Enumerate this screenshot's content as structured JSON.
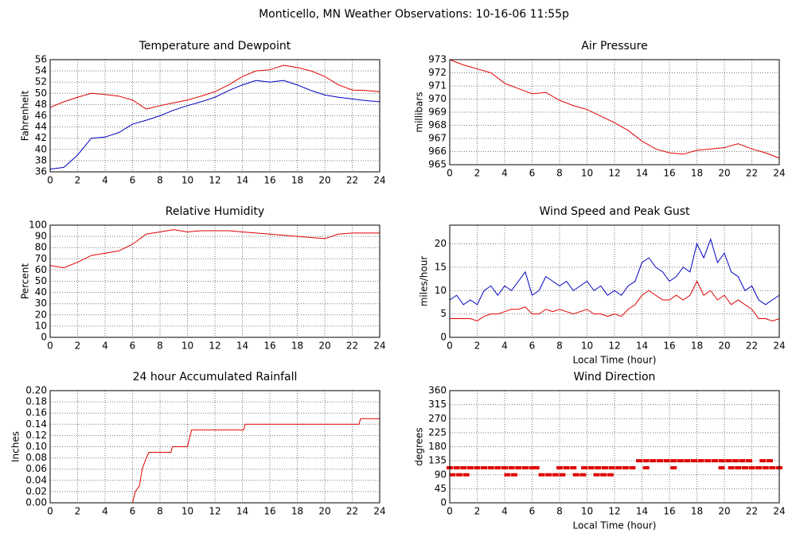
{
  "title": "Monticello, MN Weather Observations: 10-16-06 11:55p",
  "chart_data": [
    {
      "type": "line",
      "title": "Temperature and Dewpoint",
      "ylabel": "Fahrenheit",
      "xlim": [
        0,
        24
      ],
      "xticks": [
        0,
        2,
        4,
        6,
        8,
        10,
        12,
        14,
        16,
        18,
        20,
        22,
        24
      ],
      "ylim": [
        36,
        56
      ],
      "yticks": [
        36,
        38,
        40,
        42,
        44,
        46,
        48,
        50,
        52,
        54,
        56
      ],
      "grid": true,
      "x": [
        0,
        1,
        2,
        3,
        4,
        5,
        6,
        7,
        8,
        9,
        10,
        11,
        12,
        13,
        14,
        15,
        16,
        17,
        18,
        19,
        20,
        21,
        22,
        23,
        24
      ],
      "series": [
        {
          "color": "#e00000",
          "values": [
            47.5,
            48.5,
            49.3,
            50,
            49.8,
            49.5,
            48.8,
            47.2,
            47.8,
            48.3,
            48.8,
            49.5,
            50.3,
            51.5,
            53,
            54,
            54.2,
            55,
            54.6,
            54,
            53,
            51.5,
            50.6,
            50.5,
            50.3
          ]
        },
        {
          "color": "#0000c0",
          "values": [
            36.5,
            36.8,
            39,
            42,
            42.2,
            43,
            44.5,
            45.2,
            46,
            47,
            47.8,
            48.5,
            49.3,
            50.5,
            51.5,
            52.3,
            52,
            52.3,
            51.5,
            50.5,
            49.7,
            49.3,
            49,
            48.7,
            48.5
          ]
        }
      ]
    },
    {
      "type": "line",
      "title": "Air Pressure",
      "ylabel": "millibars",
      "xlim": [
        0,
        24
      ],
      "xticks": [
        0,
        2,
        4,
        6,
        8,
        10,
        12,
        14,
        16,
        18,
        20,
        22,
        24
      ],
      "ylim": [
        965,
        973
      ],
      "yticks": [
        965,
        966,
        967,
        968,
        969,
        970,
        971,
        972,
        973
      ],
      "grid": true,
      "x": [
        0,
        1,
        2,
        3,
        4,
        5,
        6,
        7,
        8,
        9,
        10,
        11,
        12,
        13,
        14,
        15,
        16,
        17,
        18,
        19,
        20,
        21,
        22,
        23,
        24
      ],
      "series": [
        {
          "color": "#e00000",
          "values": [
            973,
            972.6,
            972.3,
            972,
            971.2,
            970.8,
            970.4,
            970.5,
            969.9,
            969.5,
            969.2,
            968.7,
            968.2,
            967.6,
            966.8,
            966.2,
            965.9,
            965.8,
            966.1,
            966.2,
            966.3,
            966.6,
            966.2,
            965.9,
            965.5
          ]
        }
      ]
    },
    {
      "type": "line",
      "title": "Relative Humidity",
      "ylabel": "Percent",
      "xlim": [
        0,
        24
      ],
      "xticks": [
        0,
        2,
        4,
        6,
        8,
        10,
        12,
        14,
        16,
        18,
        20,
        22,
        24
      ],
      "ylim": [
        0,
        100
      ],
      "yticks": [
        0,
        10,
        20,
        30,
        40,
        50,
        60,
        70,
        80,
        90,
        100
      ],
      "grid": true,
      "x": [
        0,
        1,
        2,
        3,
        4,
        5,
        6,
        7,
        8,
        9,
        10,
        11,
        12,
        13,
        14,
        15,
        16,
        17,
        18,
        19,
        20,
        21,
        22,
        23,
        24
      ],
      "series": [
        {
          "color": "#e00000",
          "values": [
            64,
            62,
            67,
            73,
            75,
            77,
            83,
            92,
            94,
            96,
            94,
            95,
            95,
            95,
            94,
            93,
            92,
            91,
            90,
            89,
            88,
            92,
            93,
            93,
            93
          ]
        }
      ]
    },
    {
      "type": "line",
      "title": "Wind Speed and Peak Gust",
      "ylabel": "miles/hour",
      "xlabel": "Local Time (hour)",
      "xlim": [
        0,
        24
      ],
      "xticks": [
        0,
        2,
        4,
        6,
        8,
        10,
        12,
        14,
        16,
        18,
        20,
        22,
        24
      ],
      "ylim": [
        0,
        24
      ],
      "yticks": [
        0,
        5,
        10,
        15,
        20
      ],
      "grid": true,
      "x": [
        0,
        0.5,
        1,
        1.5,
        2,
        2.5,
        3,
        3.5,
        4,
        4.5,
        5,
        5.5,
        6,
        6.5,
        7,
        7.5,
        8,
        8.5,
        9,
        9.5,
        10,
        10.5,
        11,
        11.5,
        12,
        12.5,
        13,
        13.5,
        14,
        14.5,
        15,
        15.5,
        16,
        16.5,
        17,
        17.5,
        18,
        18.5,
        19,
        19.5,
        20,
        20.5,
        21,
        21.5,
        22,
        22.5,
        23,
        23.5,
        24
      ],
      "series": [
        {
          "color": "#0000c0",
          "values": [
            8,
            9,
            7,
            8,
            7,
            10,
            11,
            9,
            11,
            10,
            12,
            14,
            9,
            10,
            13,
            12,
            11,
            12,
            10,
            11,
            12,
            10,
            11,
            9,
            10,
            9,
            11,
            12,
            16,
            17,
            15,
            14,
            12,
            13,
            15,
            14,
            20,
            17,
            21,
            16,
            18,
            14,
            13,
            10,
            11,
            8,
            7,
            8,
            9
          ]
        },
        {
          "color": "#e00000",
          "values": [
            4,
            4,
            4,
            4,
            3.5,
            4.5,
            5,
            5,
            5.5,
            6,
            6,
            6.5,
            5,
            5,
            6,
            5.5,
            6,
            5.5,
            5,
            5.5,
            6,
            5,
            5,
            4.5,
            5,
            4.5,
            6,
            7,
            9,
            10,
            9,
            8,
            8,
            9,
            8,
            9,
            12,
            9,
            10,
            8,
            9,
            7,
            8,
            7,
            6,
            4,
            4,
            3.5,
            4
          ]
        }
      ]
    },
    {
      "type": "line",
      "title": "24 hour Accumulated Rainfall",
      "ylabel": "Inches",
      "xlim": [
        0,
        24
      ],
      "xticks": [
        0,
        2,
        4,
        6,
        8,
        10,
        12,
        14,
        16,
        18,
        20,
        22,
        24
      ],
      "ylim": [
        0,
        0.2
      ],
      "yticks": [
        {
          "value": 0,
          "label": "0.00"
        },
        {
          "value": 0.02,
          "label": "0.02"
        },
        {
          "value": 0.04,
          "label": "0.04"
        },
        {
          "value": 0.06,
          "label": "0.06"
        },
        {
          "value": 0.08,
          "label": "0.08"
        },
        {
          "value": 0.1,
          "label": "0.10"
        },
        {
          "value": 0.12,
          "label": "0.12"
        },
        {
          "value": 0.14,
          "label": "0.14"
        },
        {
          "value": 0.16,
          "label": "0.16"
        },
        {
          "value": 0.18,
          "label": "0.18"
        },
        {
          "value": 0.2,
          "label": "0.20"
        }
      ],
      "grid": true,
      "x": [
        0,
        6,
        6.2,
        6.5,
        6.7,
        7,
        7.2,
        8.8,
        8.9,
        10,
        10.2,
        10.3,
        14.1,
        14.2,
        22.5,
        22.6,
        24
      ],
      "series": [
        {
          "color": "#e00000",
          "values": [
            0,
            0,
            0.02,
            0.03,
            0.06,
            0.08,
            0.09,
            0.09,
            0.1,
            0.1,
            0.12,
            0.13,
            0.13,
            0.14,
            0.14,
            0.15,
            0.15
          ]
        }
      ]
    },
    {
      "type": "scatter",
      "title": "Wind Direction",
      "ylabel": "degrees",
      "xlabel": "Local Time (hour)",
      "xlim": [
        0,
        24
      ],
      "xticks": [
        0,
        2,
        4,
        6,
        8,
        10,
        12,
        14,
        16,
        18,
        20,
        22,
        24
      ],
      "ylim": [
        0,
        360
      ],
      "yticks": [
        0,
        45,
        90,
        135,
        180,
        225,
        270,
        315,
        360
      ],
      "grid": true,
      "series": [
        {
          "color": "#e00000",
          "x": [
            0,
            0.5,
            1,
            1.5,
            2,
            2.5,
            3,
            3.5,
            4,
            4.5,
            5,
            5.5,
            6,
            6.3,
            8,
            8.5,
            9,
            9.8,
            10.3,
            10.8,
            11.3,
            11.8,
            12.3,
            12.8,
            13.3,
            14.3,
            16.3,
            19.8,
            20.5,
            21,
            21.5,
            22,
            22.5,
            23,
            23.5,
            24,
            0.2,
            0.7,
            1.2,
            4.2,
            4.7,
            6.7,
            7.2,
            7.7,
            8.2,
            9.2,
            9.7,
            10.7,
            11.2,
            11.7,
            13.8,
            14.3,
            14.8,
            15.3,
            15.8,
            16.3,
            16.8,
            17.3,
            17.8,
            18.3,
            18.8,
            19.3,
            19.8,
            20.3,
            20.8,
            21.3,
            21.8,
            22.8,
            23.3
          ],
          "values": [
            112.5,
            112.5,
            112.5,
            112.5,
            112.5,
            112.5,
            112.5,
            112.5,
            112.5,
            112.5,
            112.5,
            112.5,
            112.5,
            112.5,
            112.5,
            112.5,
            112.5,
            112.5,
            112.5,
            112.5,
            112.5,
            112.5,
            112.5,
            112.5,
            112.5,
            112.5,
            112.5,
            112.5,
            112.5,
            112.5,
            112.5,
            112.5,
            112.5,
            112.5,
            112.5,
            112.5,
            90,
            90,
            90,
            90,
            90,
            90,
            90,
            90,
            90,
            90,
            90,
            90,
            90,
            90,
            135,
            135,
            135,
            135,
            135,
            135,
            135,
            135,
            135,
            135,
            135,
            135,
            135,
            135,
            135,
            135,
            135,
            135,
            135
          ]
        }
      ]
    }
  ]
}
